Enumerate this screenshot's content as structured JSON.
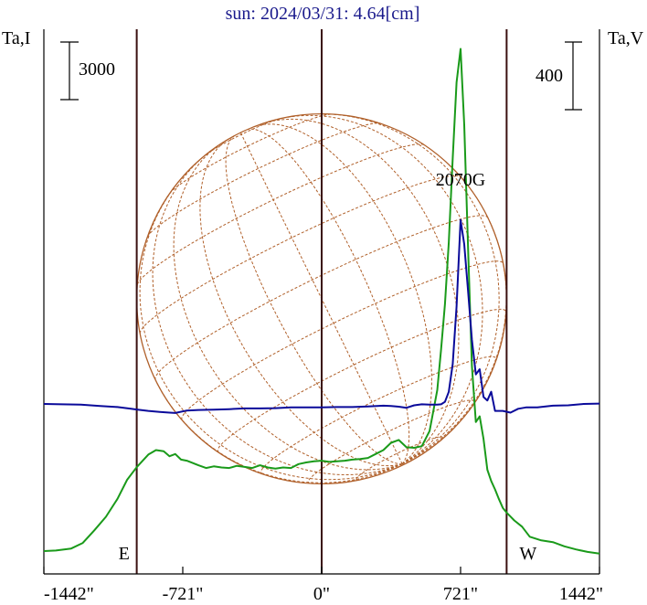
{
  "chart_data": {
    "type": "line",
    "title": "sun: 2024/03/31: 4.64[cm]",
    "left_axis_label": "Ta,I",
    "right_axis_label": "Ta,V",
    "left_scale_bar_label": "3000",
    "right_scale_bar_label": "400",
    "x_ticks": [
      {
        "value": -1442,
        "label": "-1442\""
      },
      {
        "value": -721,
        "label": "-721\""
      },
      {
        "value": 0,
        "label": "0\""
      },
      {
        "value": 721,
        "label": "721\""
      },
      {
        "value": 1442,
        "label": "1442\""
      }
    ],
    "xlim": [
      -1442,
      1442
    ],
    "vertical_markers": [
      {
        "value": -960,
        "label": "E"
      },
      {
        "value": 0,
        "label": ""
      },
      {
        "value": 960,
        "label": "W"
      }
    ],
    "annotations": [
      {
        "text": "2070G",
        "x": 721
      }
    ],
    "colors": {
      "stokes_i": "#1a9a1a",
      "stokes_v": "#0a0a9a",
      "disk": "#b0602a",
      "markers": "#3a1010",
      "title": "#1a1a8c"
    },
    "series": [
      {
        "key": "I",
        "color": "#1a9a1a",
        "y_unit_frac": 0.45,
        "x": [
          -1442,
          -1380,
          -1300,
          -1240,
          -1180,
          -1120,
          -1060,
          -1010,
          -960,
          -900,
          -860,
          -820,
          -790,
          -760,
          -730,
          -700,
          -670,
          -640,
          -600,
          -560,
          -520,
          -480,
          -440,
          -400,
          -360,
          -320,
          -280,
          -240,
          -200,
          -160,
          -120,
          -80,
          -40,
          0,
          40,
          80,
          120,
          160,
          200,
          240,
          280,
          320,
          360,
          400,
          440,
          480,
          520,
          560,
          600,
          620,
          640,
          660,
          680,
          700,
          721,
          740,
          760,
          780,
          800,
          820,
          840,
          860,
          880,
          900,
          920,
          940,
          960,
          980,
          1000,
          1040,
          1080,
          1140,
          1200,
          1260,
          1320,
          1380,
          1442
        ],
        "y": [
          0,
          20,
          90,
          290,
          740,
          1220,
          1860,
          2540,
          2990,
          3440,
          3600,
          3560,
          3380,
          3460,
          3260,
          3220,
          3140,
          3060,
          2960,
          3020,
          2980,
          2960,
          3040,
          3000,
          2960,
          3060,
          2980,
          2940,
          2980,
          2960,
          3100,
          3160,
          3200,
          3220,
          3180,
          3200,
          3220,
          3260,
          3280,
          3320,
          3460,
          3600,
          3860,
          3960,
          3700,
          3680,
          3740,
          4280,
          5740,
          7200,
          8800,
          11000,
          14000,
          16700,
          17900,
          15200,
          10800,
          6600,
          4600,
          4800,
          4000,
          2900,
          2500,
          2200,
          1850,
          1540,
          1370,
          1230,
          1090,
          870,
          510,
          380,
          320,
          170,
          60,
          -30,
          -90
        ]
      },
      {
        "key": "V",
        "color": "#0a0a9a",
        "y_unit_frac": 0.445,
        "x": [
          -1442,
          -1350,
          -1250,
          -1150,
          -1060,
          -990,
          -960,
          -900,
          -840,
          -790,
          -760,
          -700,
          -640,
          -560,
          -480,
          -400,
          -320,
          -240,
          -160,
          -80,
          0,
          80,
          160,
          240,
          320,
          360,
          400,
          440,
          480,
          520,
          560,
          600,
          620,
          640,
          660,
          680,
          700,
          721,
          740,
          760,
          780,
          800,
          820,
          840,
          860,
          880,
          900,
          940,
          980,
          1020,
          1060,
          1120,
          1200,
          1280,
          1360,
          1442
        ],
        "y": [
          0,
          -2,
          -4,
          -12,
          -18,
          -28,
          -32,
          -40,
          -46,
          -50,
          -52,
          -38,
          -35,
          -33,
          -30,
          -26,
          -26,
          -24,
          -20,
          -20,
          -20,
          -18,
          -18,
          -14,
          -10,
          -12,
          -16,
          -22,
          -8,
          -2,
          -4,
          -4,
          -2,
          12,
          70,
          230,
          560,
          1060,
          920,
          650,
          370,
          170,
          200,
          40,
          20,
          70,
          -40,
          -40,
          -50,
          -28,
          -20,
          -20,
          -10,
          -8,
          0,
          2
        ]
      }
    ]
  },
  "disk": {
    "radius": 960,
    "grid_color": "#b0602a"
  }
}
